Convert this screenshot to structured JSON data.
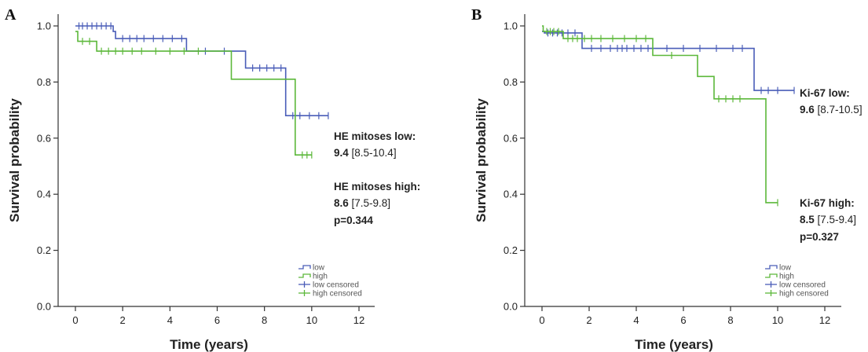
{
  "colors": {
    "low": "#4a5db8",
    "high": "#5cb83a",
    "axis": "#333333"
  },
  "chart_data": [
    {
      "panel": "A",
      "type": "line",
      "xlabel": "Time (years)",
      "ylabel": "Survival probability",
      "xlim": [
        0,
        12
      ],
      "ylim": [
        0,
        1.0
      ],
      "xticks": [
        "0",
        "2",
        "4",
        "6",
        "8",
        "10",
        "12"
      ],
      "yticks": [
        "0.0",
        "0.2",
        "0.4",
        "0.6",
        "0.8",
        "1.0"
      ],
      "series": [
        {
          "name": "low",
          "steps": [
            [
              0,
              1.0
            ],
            [
              1.6,
              1.0
            ],
            [
              1.6,
              0.98
            ],
            [
              1.7,
              0.98
            ],
            [
              1.7,
              0.955
            ],
            [
              4.7,
              0.955
            ],
            [
              4.7,
              0.91
            ],
            [
              7.2,
              0.91
            ],
            [
              7.2,
              0.85
            ],
            [
              8.9,
              0.85
            ],
            [
              8.9,
              0.68
            ],
            [
              10.7,
              0.68
            ]
          ],
          "censored": [
            [
              0.15,
              1.0
            ],
            [
              0.3,
              1.0
            ],
            [
              0.5,
              1.0
            ],
            [
              0.7,
              1.0
            ],
            [
              0.9,
              1.0
            ],
            [
              1.1,
              1.0
            ],
            [
              1.3,
              1.0
            ],
            [
              1.5,
              1.0
            ],
            [
              2.0,
              0.955
            ],
            [
              2.3,
              0.955
            ],
            [
              2.6,
              0.955
            ],
            [
              2.9,
              0.955
            ],
            [
              3.3,
              0.955
            ],
            [
              3.7,
              0.955
            ],
            [
              4.1,
              0.955
            ],
            [
              4.5,
              0.955
            ],
            [
              5.5,
              0.91
            ],
            [
              6.3,
              0.91
            ],
            [
              7.5,
              0.85
            ],
            [
              7.8,
              0.85
            ],
            [
              8.1,
              0.85
            ],
            [
              8.4,
              0.85
            ],
            [
              8.7,
              0.85
            ],
            [
              9.2,
              0.68
            ],
            [
              9.5,
              0.68
            ],
            [
              9.9,
              0.68
            ],
            [
              10.3,
              0.68
            ],
            [
              10.7,
              0.68
            ]
          ]
        },
        {
          "name": "high",
          "steps": [
            [
              0,
              0.98
            ],
            [
              0.1,
              0.98
            ],
            [
              0.1,
              0.945
            ],
            [
              0.9,
              0.945
            ],
            [
              0.9,
              0.91
            ],
            [
              6.6,
              0.91
            ],
            [
              6.6,
              0.81
            ],
            [
              9.3,
              0.81
            ],
            [
              9.3,
              0.54
            ],
            [
              10.0,
              0.54
            ]
          ],
          "censored": [
            [
              0.3,
              0.945
            ],
            [
              0.6,
              0.945
            ],
            [
              1.1,
              0.91
            ],
            [
              1.4,
              0.91
            ],
            [
              1.7,
              0.91
            ],
            [
              2.0,
              0.91
            ],
            [
              2.4,
              0.91
            ],
            [
              2.8,
              0.91
            ],
            [
              3.4,
              0.91
            ],
            [
              4.0,
              0.91
            ],
            [
              4.6,
              0.91
            ],
            [
              5.2,
              0.91
            ],
            [
              9.6,
              0.54
            ],
            [
              9.8,
              0.54
            ],
            [
              10.0,
              0.54
            ]
          ]
        }
      ],
      "annotations": [
        [
          {
            "text": "HE mitoses low:",
            "bold": true
          }
        ],
        [
          {
            "text": "9.4",
            "bold": true
          },
          {
            "text": " [8.5-10.4]",
            "bold": false
          }
        ],
        [
          {
            "text": "HE mitoses high:",
            "bold": true
          }
        ],
        [
          {
            "text": "8.6",
            "bold": true
          },
          {
            "text": " [7.5-9.8]",
            "bold": false
          }
        ],
        [
          {
            "text": "p=0.344",
            "bold": true
          }
        ]
      ],
      "legend": [
        "low",
        "high",
        "low censored",
        "high censored"
      ]
    },
    {
      "panel": "B",
      "type": "line",
      "xlabel": "Time (years)",
      "ylabel": "Survival probability",
      "xlim": [
        0,
        12
      ],
      "ylim": [
        0,
        1.0
      ],
      "xticks": [
        "0",
        "2",
        "4",
        "6",
        "8",
        "10",
        "12"
      ],
      "yticks": [
        "0.0",
        "0.2",
        "0.4",
        "0.6",
        "0.8",
        "1.0"
      ],
      "series": [
        {
          "name": "low",
          "steps": [
            [
              0,
              0.98
            ],
            [
              0.1,
              0.98
            ],
            [
              0.1,
              0.975
            ],
            [
              1.7,
              0.975
            ],
            [
              1.7,
              0.92
            ],
            [
              9.0,
              0.92
            ],
            [
              9.0,
              0.77
            ],
            [
              10.7,
              0.77
            ]
          ],
          "censored": [
            [
              0.25,
              0.975
            ],
            [
              0.45,
              0.975
            ],
            [
              0.65,
              0.975
            ],
            [
              0.85,
              0.975
            ],
            [
              1.1,
              0.975
            ],
            [
              1.4,
              0.975
            ],
            [
              2.1,
              0.92
            ],
            [
              2.5,
              0.92
            ],
            [
              2.9,
              0.92
            ],
            [
              3.2,
              0.92
            ],
            [
              3.4,
              0.92
            ],
            [
              3.6,
              0.92
            ],
            [
              3.9,
              0.92
            ],
            [
              4.2,
              0.92
            ],
            [
              4.5,
              0.92
            ],
            [
              5.3,
              0.92
            ],
            [
              6.0,
              0.92
            ],
            [
              6.7,
              0.92
            ],
            [
              7.4,
              0.92
            ],
            [
              8.1,
              0.92
            ],
            [
              8.5,
              0.92
            ],
            [
              9.3,
              0.77
            ],
            [
              9.6,
              0.77
            ],
            [
              10.0,
              0.77
            ],
            [
              10.7,
              0.77
            ]
          ]
        },
        {
          "name": "high",
          "steps": [
            [
              0,
              1.0
            ],
            [
              0.05,
              1.0
            ],
            [
              0.05,
              0.98
            ],
            [
              0.9,
              0.98
            ],
            [
              0.9,
              0.955
            ],
            [
              4.7,
              0.955
            ],
            [
              4.7,
              0.895
            ],
            [
              6.6,
              0.895
            ],
            [
              6.6,
              0.82
            ],
            [
              7.3,
              0.82
            ],
            [
              7.3,
              0.74
            ],
            [
              9.5,
              0.74
            ],
            [
              9.5,
              0.37
            ],
            [
              10.0,
              0.37
            ]
          ],
          "censored": [
            [
              0.2,
              0.98
            ],
            [
              0.35,
              0.98
            ],
            [
              0.5,
              0.98
            ],
            [
              0.7,
              0.98
            ],
            [
              1.1,
              0.955
            ],
            [
              1.3,
              0.955
            ],
            [
              1.5,
              0.955
            ],
            [
              1.8,
              0.955
            ],
            [
              2.1,
              0.955
            ],
            [
              2.5,
              0.955
            ],
            [
              3.0,
              0.955
            ],
            [
              3.5,
              0.955
            ],
            [
              4.0,
              0.955
            ],
            [
              4.4,
              0.955
            ],
            [
              5.5,
              0.895
            ],
            [
              7.5,
              0.74
            ],
            [
              7.8,
              0.74
            ],
            [
              8.1,
              0.74
            ],
            [
              8.4,
              0.74
            ],
            [
              10.0,
              0.37
            ]
          ]
        }
      ],
      "annotations": [
        [
          {
            "text": "Ki-67 low:",
            "bold": true
          }
        ],
        [
          {
            "text": "9.6",
            "bold": true
          },
          {
            "text": " [8.7-10.5]",
            "bold": false
          }
        ],
        [
          {
            "text": "Ki-67 high:",
            "bold": true
          }
        ],
        [
          {
            "text": "8.5",
            "bold": true
          },
          {
            "text": " [7.5-9.4]",
            "bold": false
          }
        ],
        [
          {
            "text": "p=0.327",
            "bold": true
          }
        ]
      ],
      "legend": [
        "low",
        "high",
        "low censored",
        "high censored"
      ]
    }
  ]
}
